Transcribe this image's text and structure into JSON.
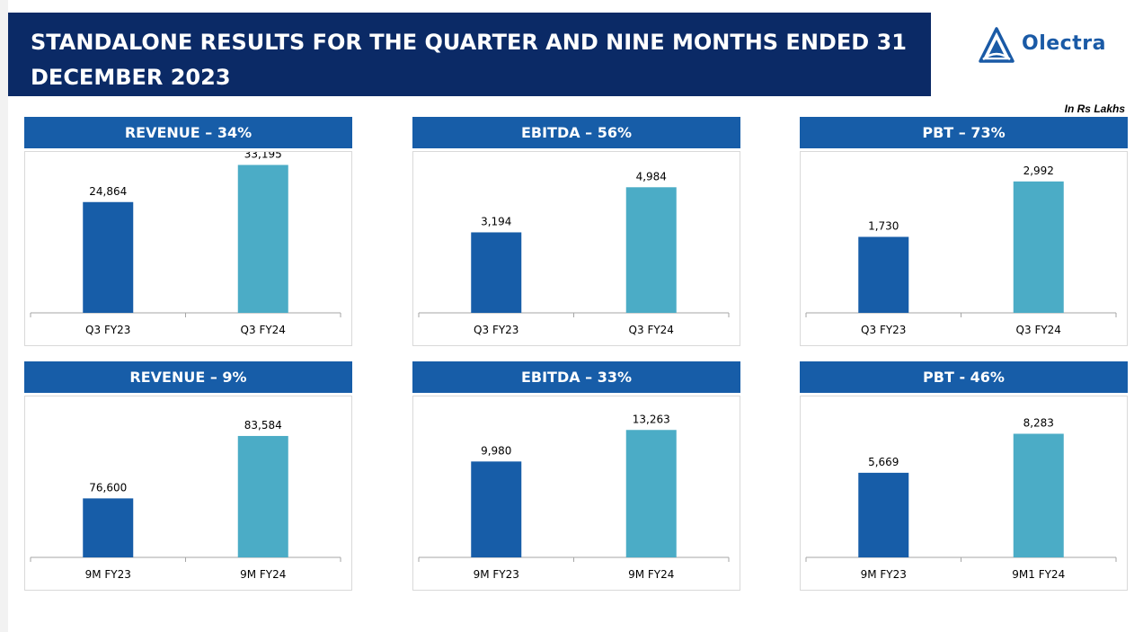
{
  "page": {
    "title": "STANDALONE RESULTS FOR THE QUARTER AND NINE MONTHS ENDED 31 DECEMBER 2023",
    "brand": "Olectra",
    "units": "In Rs Lakhs"
  },
  "colors": {
    "header": "#0b2a66",
    "panel_header": "#175da8",
    "bar_prev": "#175da8",
    "bar_curr": "#4bacc6"
  },
  "chart_data": [
    {
      "type": "bar",
      "title": "REVENUE – 34%",
      "categories": [
        "Q3 FY23",
        "Q3 FY24"
      ],
      "values": [
        24864,
        33195
      ],
      "value_labels": [
        "24,864",
        "33,195"
      ],
      "ylim": [
        0,
        34500
      ],
      "grid": false
    },
    {
      "type": "bar",
      "title": "EBITDA – 56%",
      "categories": [
        "Q3 FY23",
        "Q3 FY24"
      ],
      "values": [
        3194,
        4984
      ],
      "value_labels": [
        "3,194",
        "4,984"
      ],
      "ylim": [
        0,
        6100
      ],
      "grid": false
    },
    {
      "type": "bar",
      "title": "PBT – 73%",
      "categories": [
        "Q3 FY23",
        "Q3 FY24"
      ],
      "values": [
        1730,
        2992
      ],
      "value_labels": [
        "1,730",
        "2,992"
      ],
      "ylim": [
        0,
        3500
      ],
      "grid": false
    },
    {
      "type": "bar",
      "title": "REVENUE – 9%",
      "categories": [
        "9M FY23",
        "9M FY24"
      ],
      "values": [
        76600,
        83584
      ],
      "value_labels": [
        "76,600",
        "83,584"
      ],
      "ylim": [
        70000,
        87200
      ],
      "grid": false
    },
    {
      "type": "bar",
      "title": "EBITDA – 33%",
      "categories": [
        "9M FY23",
        "9M FY24"
      ],
      "values": [
        9980,
        13263
      ],
      "value_labels": [
        "9,980",
        "13,263"
      ],
      "ylim": [
        0,
        16000
      ],
      "grid": false
    },
    {
      "type": "bar",
      "title": "PBT - 46%",
      "categories": [
        "9M FY23",
        "9M1 FY24"
      ],
      "values": [
        5669,
        8283
      ],
      "value_labels": [
        "5,669",
        "8,283"
      ],
      "ylim": [
        0,
        10300
      ],
      "grid": false
    }
  ]
}
